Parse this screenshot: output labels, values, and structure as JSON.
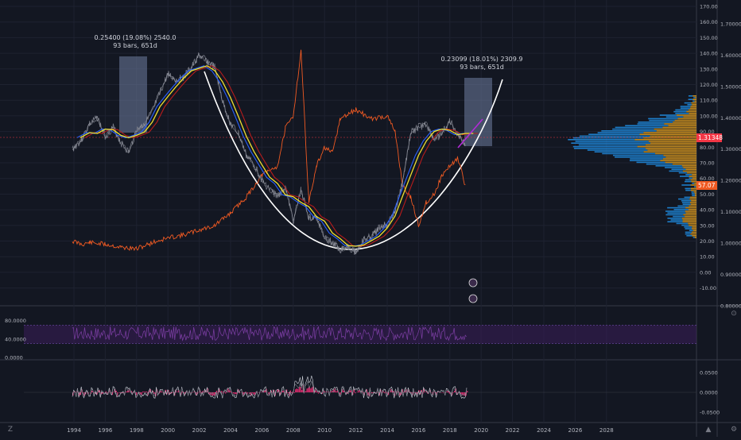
{
  "colors": {
    "background": "#131722",
    "grid": "#1e2230",
    "eurusd": "#787b86",
    "oil": "#f05a22",
    "ma_yellow": "#f0e130",
    "ma_blue": "#2962ff",
    "ma_red": "#b71c1c",
    "cup_curve": "#ffffff",
    "projection": "#b22ad8",
    "rsi": "#7e3fa6",
    "rsi_band": "#3a1e5a",
    "osc_fill": "#ff2e7a",
    "volume_orange": "#e6a11e",
    "volume_blue": "#2196f3"
  },
  "annotations": {
    "left_measure_line1": "0.25400 (19.08%) 2540.0",
    "left_measure_line2": "93 bars, 651d",
    "right_measure_line1": "0.23099 (18.01%) 2309.9",
    "right_measure_line2": "93 bars, 651d"
  },
  "price_labels": {
    "eurusd_last": "1.31348",
    "oil_last": "57.07"
  },
  "toolbar": {
    "zoom_label": "Z",
    "gear_label": "⚙",
    "lock_label": "⊙",
    "collapse_label": "▲"
  },
  "chart_data": [
    {
      "type": "line",
      "panel": "main",
      "x_ticks": [
        "1994",
        "1996",
        "1998",
        "2000",
        "2002",
        "2004",
        "2006",
        "2008",
        "2010",
        "2012",
        "2014",
        "2016",
        "2018",
        "2020",
        "2022",
        "2024",
        "2026",
        "2028"
      ],
      "left_axis_ticks": [
        "170.00",
        "160.00",
        "150.00",
        "140.00",
        "130.00",
        "120.00",
        "110.00",
        "100.00",
        "90.00",
        "80.00",
        "70.00",
        "60.00",
        "50.00",
        "40.00",
        "30.00",
        "20.00",
        "10.00",
        "0.00",
        "-10.00"
      ],
      "right_axis_ticks": [
        "1.70000",
        "1.60000",
        "1.50000",
        "1.40000",
        "1.30000",
        "1.20000",
        "1.10000",
        "1.00000",
        "0.90000",
        "0.80000"
      ],
      "ylim_price": [
        0.77,
        1.77
      ],
      "ylim_oil": [
        -15,
        175
      ],
      "series": [
        {
          "axis": "price",
          "x": [
            1993.9,
            1994.5,
            1995.0,
            1995.5,
            1996.0,
            1996.5,
            1997.0,
            1997.5,
            1998.0,
            1998.5,
            1999.0,
            1999.5,
            2000.0,
            2000.5,
            2001.0,
            2001.5,
            2002.0,
            2002.5,
            2003.0,
            2003.5,
            2004.0,
            2004.5,
            2005.0,
            2005.5,
            2006.0,
            2006.5,
            2007.0,
            2007.5,
            2008.0,
            2008.5,
            2009.0,
            2009.5,
            2010.0,
            2010.5,
            2011.0,
            2011.5,
            2012.0,
            2012.5,
            2013.0,
            2013.5,
            2014.0,
            2014.5,
            2015.0,
            2015.5,
            2016.0,
            2016.5,
            2017.0,
            2017.5,
            2018.0,
            2018.5,
            2019.0
          ],
          "y": [
            1.3,
            1.33,
            1.38,
            1.4,
            1.34,
            1.37,
            1.32,
            1.29,
            1.36,
            1.38,
            1.42,
            1.48,
            1.54,
            1.52,
            1.53,
            1.56,
            1.6,
            1.58,
            1.56,
            1.45,
            1.38,
            1.35,
            1.28,
            1.25,
            1.2,
            1.17,
            1.15,
            1.18,
            1.07,
            1.17,
            1.08,
            1.08,
            1.02,
            1.0,
            0.98,
            0.99,
            0.97,
            1.01,
            1.02,
            1.05,
            1.06,
            1.1,
            1.2,
            1.35,
            1.37,
            1.38,
            1.33,
            1.35,
            1.39,
            1.35,
            1.31
          ]
        },
        {
          "axis": "oil",
          "x": [
            1993.9,
            1994.5,
            1995.0,
            1996.0,
            1997.0,
            1998.0,
            1999.0,
            2000.0,
            2001.0,
            2002.0,
            2003.0,
            2004.0,
            2005.0,
            2006.0,
            2007.0,
            2007.5,
            2008.0,
            2008.5,
            2009.0,
            2009.5,
            2010.0,
            2010.5,
            2011.0,
            2012.0,
            2013.0,
            2014.0,
            2014.5,
            2015.0,
            2015.5,
            2016.0,
            2016.5,
            2017.0,
            2017.5,
            2018.0,
            2018.5,
            2019.0
          ],
          "y": [
            20,
            18,
            19,
            18,
            16,
            15,
            19,
            22,
            24,
            27,
            30,
            38,
            48,
            62,
            68,
            92,
            100,
            142,
            45,
            68,
            80,
            76,
            98,
            104,
            98,
            100,
            90,
            55,
            48,
            30,
            45,
            50,
            62,
            68,
            73,
            55
          ]
        }
      ]
    },
    {
      "type": "line",
      "panel": "rsi",
      "y_ticks": [
        "80.0000",
        "40.0000",
        "0.0000"
      ],
      "ylim": [
        0,
        100
      ],
      "band": [
        30,
        70
      ]
    },
    {
      "type": "line",
      "panel": "oscillator",
      "y_ticks": [
        "0.0500",
        "0.0000",
        "-0.0500"
      ],
      "ylim": [
        -0.07,
        0.07
      ]
    }
  ]
}
